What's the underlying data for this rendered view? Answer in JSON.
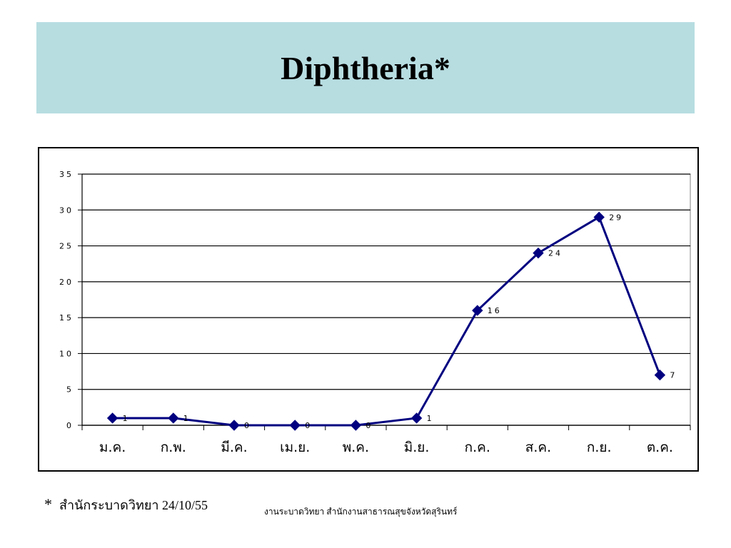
{
  "title": "Diphtheria*",
  "footnote": {
    "marker": "*",
    "text": "สำนักระบาดวิทยา 24/10/55"
  },
  "footer_credit": "งานระบาดวิทยา สำนักงานสาธารณสุขจังหวัดสุรินทร์",
  "colors": {
    "title_band": "#b7dde1",
    "series_line": "#000080",
    "grid": "#000000"
  },
  "chart_data": {
    "type": "line",
    "title": "",
    "xlabel": "",
    "ylabel": "",
    "categories": [
      "ม.ค.",
      "ก.พ.",
      "มี.ค.",
      "เม.ย.",
      "พ.ค.",
      "มิ.ย.",
      "ก.ค.",
      "ส.ค.",
      "ก.ย.",
      "ต.ค."
    ],
    "values": [
      1,
      1,
      0,
      0,
      0,
      1,
      16,
      24,
      29,
      7
    ],
    "data_labels": [
      "1",
      "1",
      "0",
      "0",
      "0",
      "1",
      "16",
      "24",
      "29",
      "7"
    ],
    "yticks": [
      "0",
      "5",
      "10",
      "15",
      "20",
      "25",
      "30",
      "35"
    ],
    "ylim": [
      0,
      35
    ],
    "grid": true,
    "marker": "diamond",
    "legend": "none"
  }
}
